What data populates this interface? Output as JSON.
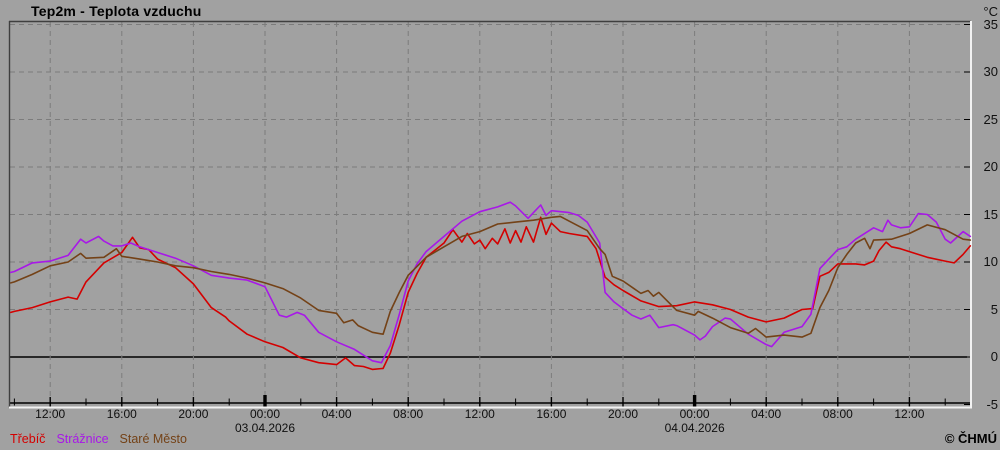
{
  "title": "Tep2m - Teplota vzduchu",
  "unit_label": "°C",
  "copyright": "© ČHMÚ",
  "colors": {
    "background": "#a1a1a1",
    "gridline": "#7c7c7c",
    "border_dark": "#3f3f3f",
    "border_light": "#f2f2f2",
    "axis": "#000000",
    "trebic": "#d40000",
    "straznice": "#a818e8",
    "stare_mesto": "#744217"
  },
  "legend": [
    {
      "label": "Třebíč",
      "color": "#d40000"
    },
    {
      "label": "Strážnice",
      "color": "#a818e8"
    },
    {
      "label": "Staré Město",
      "color": "#744217"
    }
  ],
  "chart_data": {
    "type": "line",
    "title": "Tep2m - Teplota vzduchu",
    "ylabel": "°C",
    "ylim": [
      -5.2,
      35.3
    ],
    "yticks": [
      35,
      30,
      25,
      20,
      15,
      10,
      5,
      0,
      -5
    ],
    "zero_line": true,
    "grid": "dashed",
    "legend_position": "bottom-left",
    "x_axis": {
      "unit": "hours relative to 00:00 03.04.2026",
      "range": [
        -14.25,
        39.45
      ],
      "major_tick_hours": 4,
      "minor_tick_hours": 2,
      "tick_labels": [
        {
          "t": -12,
          "label": "12:00"
        },
        {
          "t": -8,
          "label": "16:00"
        },
        {
          "t": -4,
          "label": "20:00"
        },
        {
          "t": 0,
          "label": "00:00"
        },
        {
          "t": 4,
          "label": "04:00"
        },
        {
          "t": 8,
          "label": "08:00"
        },
        {
          "t": 12,
          "label": "12:00"
        },
        {
          "t": 16,
          "label": "16:00"
        },
        {
          "t": 20,
          "label": "20:00"
        },
        {
          "t": 24,
          "label": "00:00"
        },
        {
          "t": 28,
          "label": "04:00"
        },
        {
          "t": 32,
          "label": "08:00"
        },
        {
          "t": 36,
          "label": "12:00"
        }
      ],
      "date_labels": [
        {
          "t": 0,
          "label": "03.04.2026"
        },
        {
          "t": 24,
          "label": "04.04.2026"
        }
      ]
    },
    "series": [
      {
        "name": "Třebíč",
        "color": "#d40000",
        "points": [
          [
            -14.2,
            4.7
          ],
          [
            -14,
            4.8
          ],
          [
            -13,
            5.2
          ],
          [
            -12,
            5.8
          ],
          [
            -11,
            6.3
          ],
          [
            -10.5,
            6.1
          ],
          [
            -10,
            7.9
          ],
          [
            -9,
            9.9
          ],
          [
            -8,
            11.0
          ],
          [
            -7.4,
            12.6
          ],
          [
            -7,
            11.5
          ],
          [
            -6.5,
            11.3
          ],
          [
            -6,
            10.3
          ],
          [
            -5,
            9.4
          ],
          [
            -4,
            7.7
          ],
          [
            -3,
            5.2
          ],
          [
            -2.2,
            4.2
          ],
          [
            -2,
            3.8
          ],
          [
            -1,
            2.4
          ],
          [
            0,
            1.6
          ],
          [
            1,
            1.0
          ],
          [
            2,
            -0.1
          ],
          [
            3,
            -0.6
          ],
          [
            4,
            -0.8
          ],
          [
            4.5,
            -0.1
          ],
          [
            5,
            -0.9
          ],
          [
            5.5,
            -1.0
          ],
          [
            6,
            -1.3
          ],
          [
            6.6,
            -1.2
          ],
          [
            7,
            0.4
          ],
          [
            7.5,
            3.4
          ],
          [
            8,
            6.8
          ],
          [
            8.5,
            8.8
          ],
          [
            9,
            10.5
          ],
          [
            10,
            12.0
          ],
          [
            10.5,
            13.4
          ],
          [
            11,
            12.1
          ],
          [
            11.3,
            13.0
          ],
          [
            11.7,
            11.9
          ],
          [
            12,
            12.3
          ],
          [
            12.3,
            11.4
          ],
          [
            12.7,
            12.5
          ],
          [
            13,
            11.9
          ],
          [
            13.4,
            13.5
          ],
          [
            13.7,
            12.0
          ],
          [
            14,
            13.3
          ],
          [
            14.3,
            12.1
          ],
          [
            14.6,
            13.7
          ],
          [
            15,
            12.1
          ],
          [
            15.4,
            14.7
          ],
          [
            15.7,
            12.9
          ],
          [
            16,
            14.1
          ],
          [
            16.5,
            13.2
          ],
          [
            17,
            13.0
          ],
          [
            18,
            12.7
          ],
          [
            18.5,
            11.4
          ],
          [
            19,
            8.4
          ],
          [
            19.5,
            7.6
          ],
          [
            20,
            7.0
          ],
          [
            21,
            5.9
          ],
          [
            22,
            5.3
          ],
          [
            23,
            5.4
          ],
          [
            24,
            5.8
          ],
          [
            25,
            5.5
          ],
          [
            26,
            5.0
          ],
          [
            27,
            4.2
          ],
          [
            28,
            3.7
          ],
          [
            29,
            4.1
          ],
          [
            30,
            5.0
          ],
          [
            30.6,
            5.1
          ],
          [
            31,
            8.5
          ],
          [
            31.5,
            8.9
          ],
          [
            32,
            9.8
          ],
          [
            33,
            9.8
          ],
          [
            33.5,
            9.7
          ],
          [
            34,
            10.1
          ],
          [
            34.3,
            11.2
          ],
          [
            34.7,
            12.1
          ],
          [
            35,
            11.6
          ],
          [
            35.5,
            11.4
          ],
          [
            36,
            11.1
          ],
          [
            37,
            10.5
          ],
          [
            38,
            10.1
          ],
          [
            38.5,
            9.9
          ],
          [
            39,
            10.8
          ],
          [
            39.4,
            11.7
          ]
        ]
      },
      {
        "name": "Strážnice",
        "color": "#a818e8",
        "points": [
          [
            -14.2,
            8.9
          ],
          [
            -14,
            9.0
          ],
          [
            -13,
            9.9
          ],
          [
            -12,
            10.1
          ],
          [
            -11,
            10.7
          ],
          [
            -10.3,
            12.4
          ],
          [
            -10,
            12.0
          ],
          [
            -9.3,
            12.7
          ],
          [
            -9,
            12.2
          ],
          [
            -8.5,
            11.7
          ],
          [
            -8,
            11.7
          ],
          [
            -7.5,
            12.0
          ],
          [
            -7,
            11.6
          ],
          [
            -6,
            11.0
          ],
          [
            -5,
            10.4
          ],
          [
            -4,
            9.6
          ],
          [
            -3,
            8.6
          ],
          [
            -2,
            8.3
          ],
          [
            -1,
            8.1
          ],
          [
            0,
            7.4
          ],
          [
            0.8,
            4.4
          ],
          [
            1.2,
            4.2
          ],
          [
            1.8,
            4.7
          ],
          [
            2.2,
            4.4
          ],
          [
            3,
            2.6
          ],
          [
            4,
            1.6
          ],
          [
            5,
            0.8
          ],
          [
            6,
            -0.4
          ],
          [
            6.5,
            -0.6
          ],
          [
            7,
            1.2
          ],
          [
            7.5,
            4.5
          ],
          [
            8,
            8.0
          ],
          [
            8.5,
            9.8
          ],
          [
            9,
            11.1
          ],
          [
            10,
            12.7
          ],
          [
            11,
            14.3
          ],
          [
            12,
            15.3
          ],
          [
            13,
            15.8
          ],
          [
            13.7,
            16.3
          ],
          [
            14,
            15.9
          ],
          [
            14.7,
            14.6
          ],
          [
            15,
            15.2
          ],
          [
            15.4,
            16.0
          ],
          [
            15.7,
            14.9
          ],
          [
            16,
            15.4
          ],
          [
            17,
            15.2
          ],
          [
            17.5,
            14.9
          ],
          [
            18,
            14.2
          ],
          [
            18.7,
            12.0
          ],
          [
            19,
            6.8
          ],
          [
            19.5,
            5.8
          ],
          [
            20,
            5.1
          ],
          [
            20.5,
            4.4
          ],
          [
            21,
            4.0
          ],
          [
            21.5,
            4.4
          ],
          [
            22,
            3.1
          ],
          [
            22.8,
            3.4
          ],
          [
            23,
            3.3
          ],
          [
            24,
            2.3
          ],
          [
            24.3,
            1.8
          ],
          [
            24.6,
            2.2
          ],
          [
            25,
            3.2
          ],
          [
            25.7,
            4.1
          ],
          [
            26,
            4.0
          ],
          [
            27,
            2.4
          ],
          [
            28,
            1.3
          ],
          [
            28.3,
            1.1
          ],
          [
            29,
            2.6
          ],
          [
            30,
            3.2
          ],
          [
            30.5,
            4.5
          ],
          [
            31,
            9.3
          ],
          [
            31.5,
            10.3
          ],
          [
            32,
            11.3
          ],
          [
            32.5,
            11.6
          ],
          [
            33,
            12.4
          ],
          [
            34,
            13.6
          ],
          [
            34.5,
            13.2
          ],
          [
            34.8,
            14.4
          ],
          [
            35,
            13.9
          ],
          [
            35.5,
            13.6
          ],
          [
            36,
            13.7
          ],
          [
            36.5,
            15.1
          ],
          [
            37,
            15.0
          ],
          [
            37.5,
            14.2
          ],
          [
            38,
            12.4
          ],
          [
            38.3,
            12.0
          ],
          [
            39,
            13.2
          ],
          [
            39.4,
            12.7
          ]
        ]
      },
      {
        "name": "Staré Město",
        "color": "#744217",
        "points": [
          [
            -14.2,
            7.8
          ],
          [
            -14,
            7.9
          ],
          [
            -13,
            8.7
          ],
          [
            -12,
            9.6
          ],
          [
            -11,
            10.0
          ],
          [
            -10.3,
            10.9
          ],
          [
            -10,
            10.4
          ],
          [
            -9,
            10.5
          ],
          [
            -8.3,
            11.4
          ],
          [
            -8,
            10.6
          ],
          [
            -7,
            10.3
          ],
          [
            -6,
            10.0
          ],
          [
            -5,
            9.6
          ],
          [
            -4,
            9.4
          ],
          [
            -3,
            9.0
          ],
          [
            -2,
            8.7
          ],
          [
            -1,
            8.3
          ],
          [
            0,
            7.8
          ],
          [
            1,
            7.2
          ],
          [
            2,
            6.2
          ],
          [
            3,
            4.9
          ],
          [
            4,
            4.6
          ],
          [
            4.4,
            3.6
          ],
          [
            4.9,
            3.9
          ],
          [
            5.2,
            3.3
          ],
          [
            6,
            2.6
          ],
          [
            6.6,
            2.4
          ],
          [
            7,
            4.8
          ],
          [
            7.5,
            6.8
          ],
          [
            8,
            8.6
          ],
          [
            9,
            10.5
          ],
          [
            10,
            11.6
          ],
          [
            11,
            12.7
          ],
          [
            12,
            13.2
          ],
          [
            13,
            14.0
          ],
          [
            14,
            14.2
          ],
          [
            15,
            14.4
          ],
          [
            16,
            14.7
          ],
          [
            16.5,
            14.8
          ],
          [
            17,
            14.3
          ],
          [
            18,
            13.3
          ],
          [
            18.7,
            11.4
          ],
          [
            19,
            10.8
          ],
          [
            19.4,
            8.5
          ],
          [
            20,
            8.0
          ],
          [
            21,
            6.7
          ],
          [
            21.4,
            7.0
          ],
          [
            21.7,
            6.4
          ],
          [
            22,
            6.8
          ],
          [
            23,
            4.9
          ],
          [
            24,
            4.4
          ],
          [
            24.2,
            4.8
          ],
          [
            25,
            4.1
          ],
          [
            26,
            3.1
          ],
          [
            27,
            2.5
          ],
          [
            27.4,
            3.0
          ],
          [
            28,
            2.1
          ],
          [
            29,
            2.3
          ],
          [
            30,
            2.1
          ],
          [
            30.5,
            2.5
          ],
          [
            31,
            5.2
          ],
          [
            31.5,
            7.0
          ],
          [
            32,
            9.4
          ],
          [
            32.5,
            10.8
          ],
          [
            33,
            12.0
          ],
          [
            33.5,
            12.5
          ],
          [
            33.8,
            11.4
          ],
          [
            34,
            12.3
          ],
          [
            35,
            12.4
          ],
          [
            36,
            13.0
          ],
          [
            37,
            13.9
          ],
          [
            38,
            13.4
          ],
          [
            39,
            12.4
          ],
          [
            39.4,
            12.3
          ]
        ]
      }
    ]
  }
}
